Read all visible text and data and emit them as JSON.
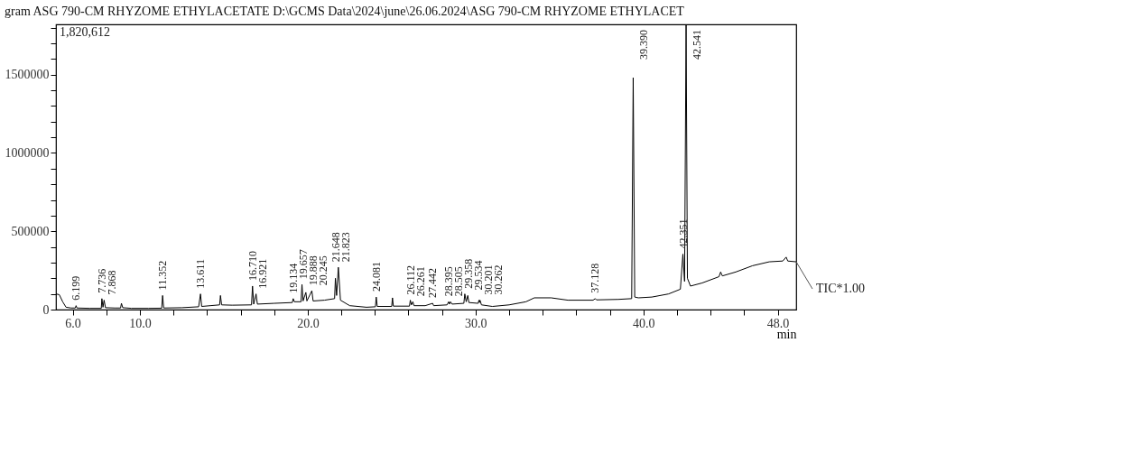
{
  "chart_data": {
    "type": "line",
    "title": "gram ASG 790-CM RHYZOME ETHYLACETATE D:\\GCMS Data\\2024\\june\\26.06.2024\\ASG 790-CM RHYZOME ETHYLACET",
    "xlabel": "min",
    "xlim": [
      5.0,
      49.1
    ],
    "ylim": [
      0,
      1820612
    ],
    "xticks": [
      {
        "value": 6,
        "label": "6.0"
      },
      {
        "value": 8,
        "label": null
      },
      {
        "value": 10,
        "label": "10.0"
      },
      {
        "value": 12,
        "label": null
      },
      {
        "value": 14,
        "label": null
      },
      {
        "value": 16,
        "label": null
      },
      {
        "value": 18,
        "label": null
      },
      {
        "value": 20,
        "label": "20.0"
      },
      {
        "value": 22,
        "label": null
      },
      {
        "value": 24,
        "label": null
      },
      {
        "value": 26,
        "label": null
      },
      {
        "value": 28,
        "label": null
      },
      {
        "value": 30,
        "label": "30.0"
      },
      {
        "value": 32,
        "label": null
      },
      {
        "value": 34,
        "label": null
      },
      {
        "value": 36,
        "label": null
      },
      {
        "value": 38,
        "label": null
      },
      {
        "value": 40,
        "label": "40.0"
      },
      {
        "value": 42,
        "label": null
      },
      {
        "value": 44,
        "label": null
      },
      {
        "value": 46,
        "label": null
      },
      {
        "value": 48,
        "label": "48.0"
      }
    ],
    "yticks": [
      0,
      {
        "value": 100000,
        "label": null
      },
      {
        "value": 200000,
        "label": null
      },
      {
        "value": 300000,
        "label": null
      },
      {
        "value": 400000,
        "label": null
      },
      500000,
      {
        "value": 600000,
        "label": null
      },
      {
        "value": 700000,
        "label": null
      },
      {
        "value": 800000,
        "label": null
      },
      {
        "value": 900000,
        "label": null
      },
      1000000,
      {
        "value": 1100000,
        "label": null
      },
      {
        "value": 1200000,
        "label": null
      },
      {
        "value": 1300000,
        "label": null
      },
      {
        "value": 1400000,
        "label": null
      },
      1500000,
      {
        "value": 1600000,
        "label": null
      },
      {
        "value": 1700000,
        "label": null
      },
      {
        "value": 1800000,
        "label": null
      }
    ],
    "grid": false,
    "legend": false,
    "marker": "none",
    "line_style": "solid",
    "x": [
      5.0,
      5.2,
      5.4,
      5.6,
      5.9,
      6.15,
      6.199,
      6.25,
      7.0,
      7.7,
      7.736,
      7.8,
      7.868,
      7.95,
      8.5,
      8.85,
      8.9,
      8.98,
      9.5,
      10.5,
      11.3,
      11.352,
      11.42,
      12.5,
      13.5,
      13.611,
      13.68,
      14.2,
      14.75,
      14.8,
      14.87,
      15.5,
      16.65,
      16.71,
      16.78,
      16.921,
      17.0,
      18.0,
      19.08,
      19.134,
      19.2,
      19.6,
      19.657,
      19.72,
      19.888,
      19.95,
      20.245,
      20.32,
      21.0,
      21.6,
      21.648,
      21.72,
      21.823,
      21.95,
      22.5,
      23.5,
      24.03,
      24.081,
      24.14,
      25.0,
      25.05,
      25.1,
      26.06,
      26.112,
      26.18,
      26.261,
      26.33,
      27.0,
      27.442,
      27.5,
      28.3,
      28.395,
      28.45,
      28.505,
      28.6,
      29.3,
      29.358,
      29.44,
      29.534,
      29.6,
      30.15,
      30.201,
      30.23,
      30.262,
      30.35,
      31.0,
      32.0,
      33.0,
      33.5,
      34.5,
      35.5,
      37.0,
      37.128,
      37.2,
      38.5,
      39.3,
      39.39,
      39.48,
      39.7,
      40.5,
      41.5,
      42.2,
      42.351,
      42.45,
      42.541,
      42.62,
      42.8,
      43.5,
      44.5,
      44.6,
      44.7,
      45.5,
      46.5,
      47.5,
      48.3,
      48.5,
      48.6,
      49.1
    ],
    "series": [
      {
        "name": "TIC*1.00",
        "color": "#000000",
        "values": [
          100000,
          95000,
          50000,
          15000,
          10000,
          10000,
          25000,
          10000,
          8000,
          8000,
          70000,
          15000,
          60000,
          12000,
          10000,
          10000,
          40000,
          12000,
          8000,
          8000,
          9000,
          90000,
          10000,
          12000,
          18000,
          100000,
          20000,
          25000,
          30000,
          90000,
          30000,
          28000,
          30000,
          150000,
          35000,
          100000,
          35000,
          40000,
          45000,
          70000,
          50000,
          50000,
          160000,
          55000,
          110000,
          55000,
          120000,
          55000,
          60000,
          70000,
          200000,
          90000,
          270000,
          60000,
          25000,
          15000,
          18000,
          80000,
          20000,
          20000,
          75000,
          22000,
          22000,
          60000,
          30000,
          50000,
          25000,
          25000,
          40000,
          25000,
          30000,
          50000,
          35000,
          50000,
          35000,
          40000,
          100000,
          50000,
          90000,
          45000,
          40000,
          60000,
          45000,
          60000,
          30000,
          20000,
          30000,
          50000,
          75000,
          75000,
          60000,
          60000,
          70000,
          62000,
          65000,
          70000,
          1480000,
          80000,
          75000,
          80000,
          100000,
          130000,
          354000,
          180000,
          1820612,
          200000,
          150000,
          170000,
          210000,
          240000,
          215000,
          240000,
          280000,
          305000,
          310000,
          335000,
          310000,
          305000
        ]
      }
    ],
    "annotations": [
      "1,820,612",
      {
        "text": "6.199",
        "x": 6.199,
        "y": 25000
      },
      {
        "text": "7.736",
        "x": 7.736,
        "y": 70000
      },
      {
        "text": "7.868",
        "x": 7.868,
        "y": 60000
      },
      {
        "text": "11.352",
        "x": 11.352,
        "y": 90000
      },
      {
        "text": "13.611",
        "x": 13.611,
        "y": 100000
      },
      {
        "text": "16.710",
        "x": 16.71,
        "y": 150000
      },
      {
        "text": "16.921",
        "x": 16.921,
        "y": 100000
      },
      {
        "text": "19.134",
        "x": 19.134,
        "y": 70000
      },
      {
        "text": "19.657",
        "x": 19.657,
        "y": 160000
      },
      {
        "text": "19.888",
        "x": 19.888,
        "y": 110000
      },
      {
        "text": "20.245",
        "x": 20.245,
        "y": 120000
      },
      {
        "text": "21.648",
        "x": 21.648,
        "y": 200000
      },
      {
        "text": "21.823",
        "x": 21.823,
        "y": 270000
      },
      {
        "text": "24.081",
        "x": 24.081,
        "y": 80000
      },
      {
        "text": "26.112",
        "x": 26.112,
        "y": 60000
      },
      {
        "text": "26.261",
        "x": 26.261,
        "y": 50000
      },
      {
        "text": "27.442",
        "x": 27.442,
        "y": 40000
      },
      {
        "text": "28.395",
        "x": 28.395,
        "y": 50000
      },
      {
        "text": "28.505",
        "x": 28.505,
        "y": 50000
      },
      {
        "text": "29.358",
        "x": 29.358,
        "y": 100000
      },
      {
        "text": "29.534",
        "x": 29.534,
        "y": 90000
      },
      {
        "text": "30.201",
        "x": 30.201,
        "y": 60000
      },
      {
        "text": "30.262",
        "x": 30.262,
        "y": 60000
      },
      {
        "text": "37.128",
        "x": 37.128,
        "y": 70000
      },
      {
        "text": "39.390",
        "x": 39.39,
        "y": 1480000
      },
      {
        "text": "42.351",
        "x": 42.351,
        "y": 354000
      },
      {
        "text": "42.541",
        "x": 42.541,
        "y": 1820612
      }
    ]
  }
}
